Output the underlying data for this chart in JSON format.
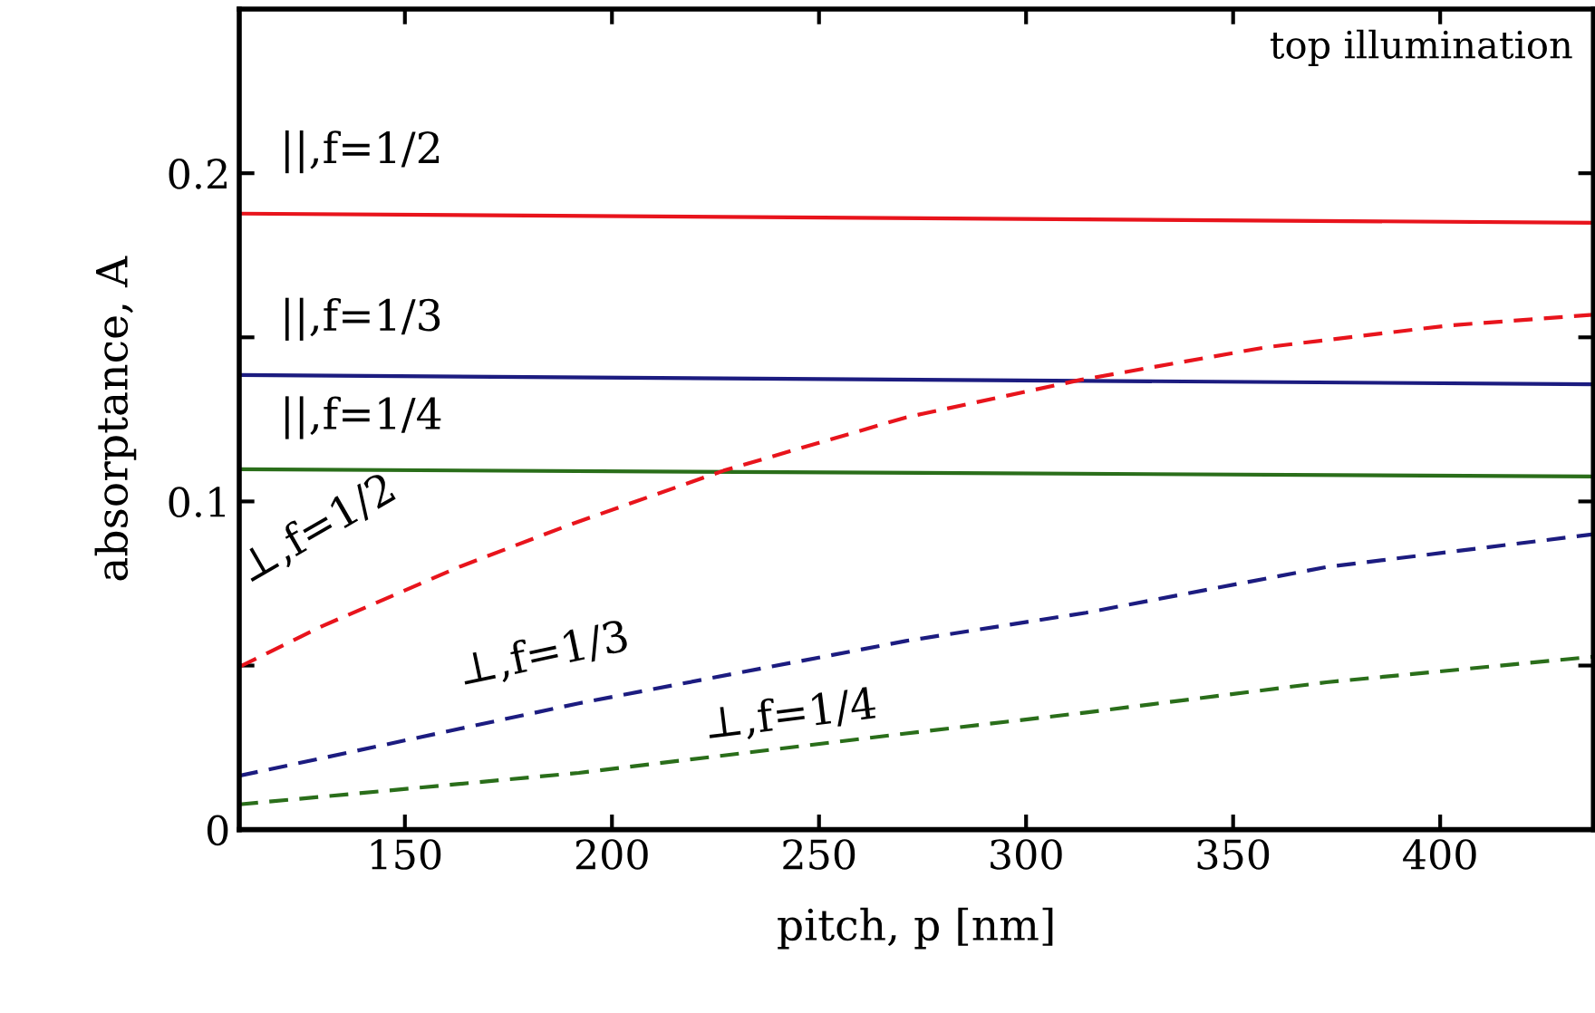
{
  "chart_data": {
    "type": "line",
    "xlabel": "pitch, p [nm]",
    "ylabel": "absorptance, A",
    "xlim": [
      110,
      437
    ],
    "ylim": [
      0,
      0.25
    ],
    "xticks": [
      150,
      200,
      250,
      300,
      350,
      400
    ],
    "yticks": [
      {
        "value": 0,
        "label": "0"
      },
      {
        "value": 0.05,
        "label": null
      },
      {
        "value": 0.1,
        "label": "0.1"
      },
      {
        "value": 0.15,
        "label": null
      },
      {
        "value": 0.2,
        "label": "0.2"
      }
    ],
    "grid": false,
    "legend": false,
    "marker": "none",
    "series": [
      {
        "name": "||,f=1/2",
        "color": "#e8141c",
        "line_style": "solid",
        "x": [
          110,
          437
        ],
        "values": [
          0.1877,
          0.1849
        ]
      },
      {
        "name": "||,f=1/3",
        "color": "#1c1c80",
        "line_style": "solid",
        "x": [
          110,
          437
        ],
        "values": [
          0.1385,
          0.1357
        ]
      },
      {
        "name": "||,f=1/4",
        "color": "#2a6e1a",
        "line_style": "solid",
        "x": [
          110,
          437
        ],
        "values": [
          0.1098,
          0.1076
        ]
      },
      {
        "name": "⊥,f=1/2",
        "color": "#e8141c",
        "line_style": "dashed",
        "x": [
          110,
          130,
          163,
          190,
          227,
          271,
          313,
          358,
          402,
          437
        ],
        "values": [
          0.0496,
          0.062,
          0.08,
          0.093,
          0.1094,
          0.1256,
          0.137,
          0.147,
          0.1536,
          0.1569
        ]
      },
      {
        "name": "⊥,f=1/3",
        "color": "#1c1c80",
        "line_style": "dashed",
        "x": [
          110,
          192,
          271,
          314.5,
          372.5,
          437
        ],
        "values": [
          0.0164,
          0.0385,
          0.0575,
          0.0661,
          0.08,
          0.09
        ]
      },
      {
        "name": "⊥,f=1/4",
        "color": "#2a6e1a",
        "line_style": "dashed",
        "x": [
          110,
          192,
          271,
          314.5,
          372.5,
          437
        ],
        "values": [
          0.0077,
          0.0173,
          0.0293,
          0.0357,
          0.0449,
          0.0527
        ]
      }
    ],
    "annotations": [
      "top illumination"
    ]
  }
}
